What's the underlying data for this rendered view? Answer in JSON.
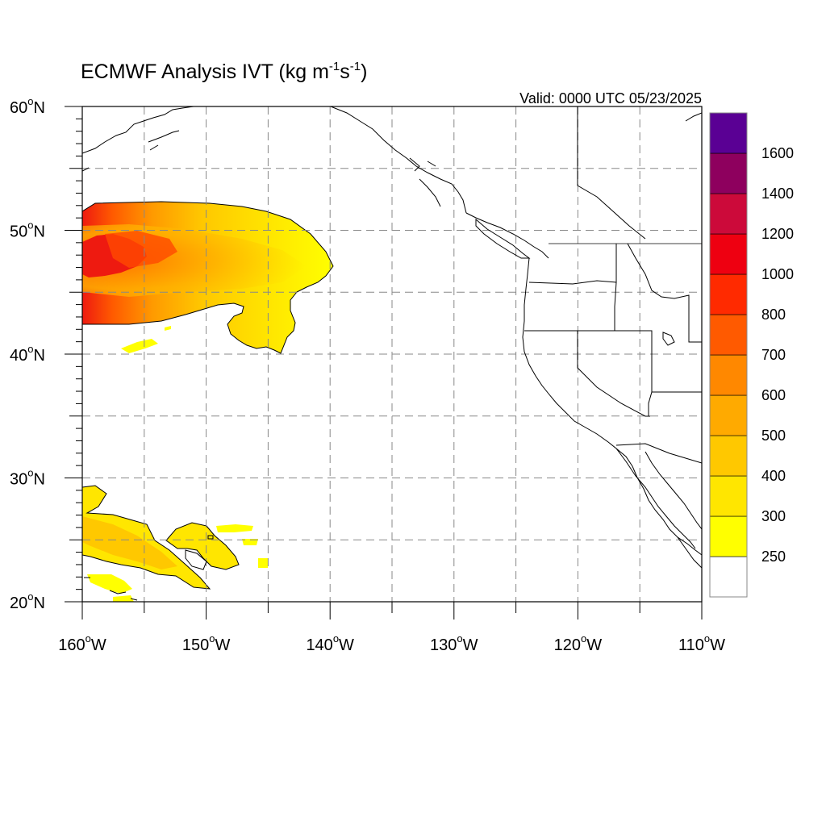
{
  "figure": {
    "title_main": "ECMWF Analysis IVT (kg m",
    "title_sup1": "-1",
    "title_mid": "s",
    "title_sup2": "-1",
    "title_end": ")",
    "valid": "Valid: 0000 UTC 05/23/2025"
  },
  "axes": {
    "lat": [
      {
        "value": 60,
        "label": "60",
        "hemi": "N"
      },
      {
        "value": 50,
        "label": "50",
        "hemi": "N"
      },
      {
        "value": 40,
        "label": "40",
        "hemi": "N"
      },
      {
        "value": 30,
        "label": "30",
        "hemi": "N"
      },
      {
        "value": 20,
        "label": "20",
        "hemi": "N"
      }
    ],
    "lon": [
      {
        "value": -160,
        "label": "160",
        "hemi": "W"
      },
      {
        "value": -150,
        "label": "150",
        "hemi": "W"
      },
      {
        "value": -140,
        "label": "140",
        "hemi": "W"
      },
      {
        "value": -130,
        "label": "130",
        "hemi": "W"
      },
      {
        "value": -120,
        "label": "120",
        "hemi": "W"
      },
      {
        "value": -110,
        "label": "110",
        "hemi": "W"
      }
    ],
    "lat_range": [
      20,
      60
    ],
    "lon_range": [
      -160,
      -110
    ],
    "grid_interval_deg": 5
  },
  "colorbar": {
    "levels": [
      {
        "label": "",
        "color": "#ffffff"
      },
      {
        "label": "250",
        "color": "#ffff00"
      },
      {
        "label": "300",
        "color": "#ffe600"
      },
      {
        "label": "400",
        "color": "#ffc800"
      },
      {
        "label": "500",
        "color": "#ffaa00"
      },
      {
        "label": "600",
        "color": "#ff8800"
      },
      {
        "label": "700",
        "color": "#ff5a00"
      },
      {
        "label": "800",
        "color": "#ff2a00"
      },
      {
        "label": "1000",
        "color": "#ee0011"
      },
      {
        "label": "1200",
        "color": "#cc0a3a"
      },
      {
        "label": "1400",
        "color": "#8e005e"
      },
      {
        "label": "1600",
        "color": "#5a0094"
      }
    ]
  }
}
